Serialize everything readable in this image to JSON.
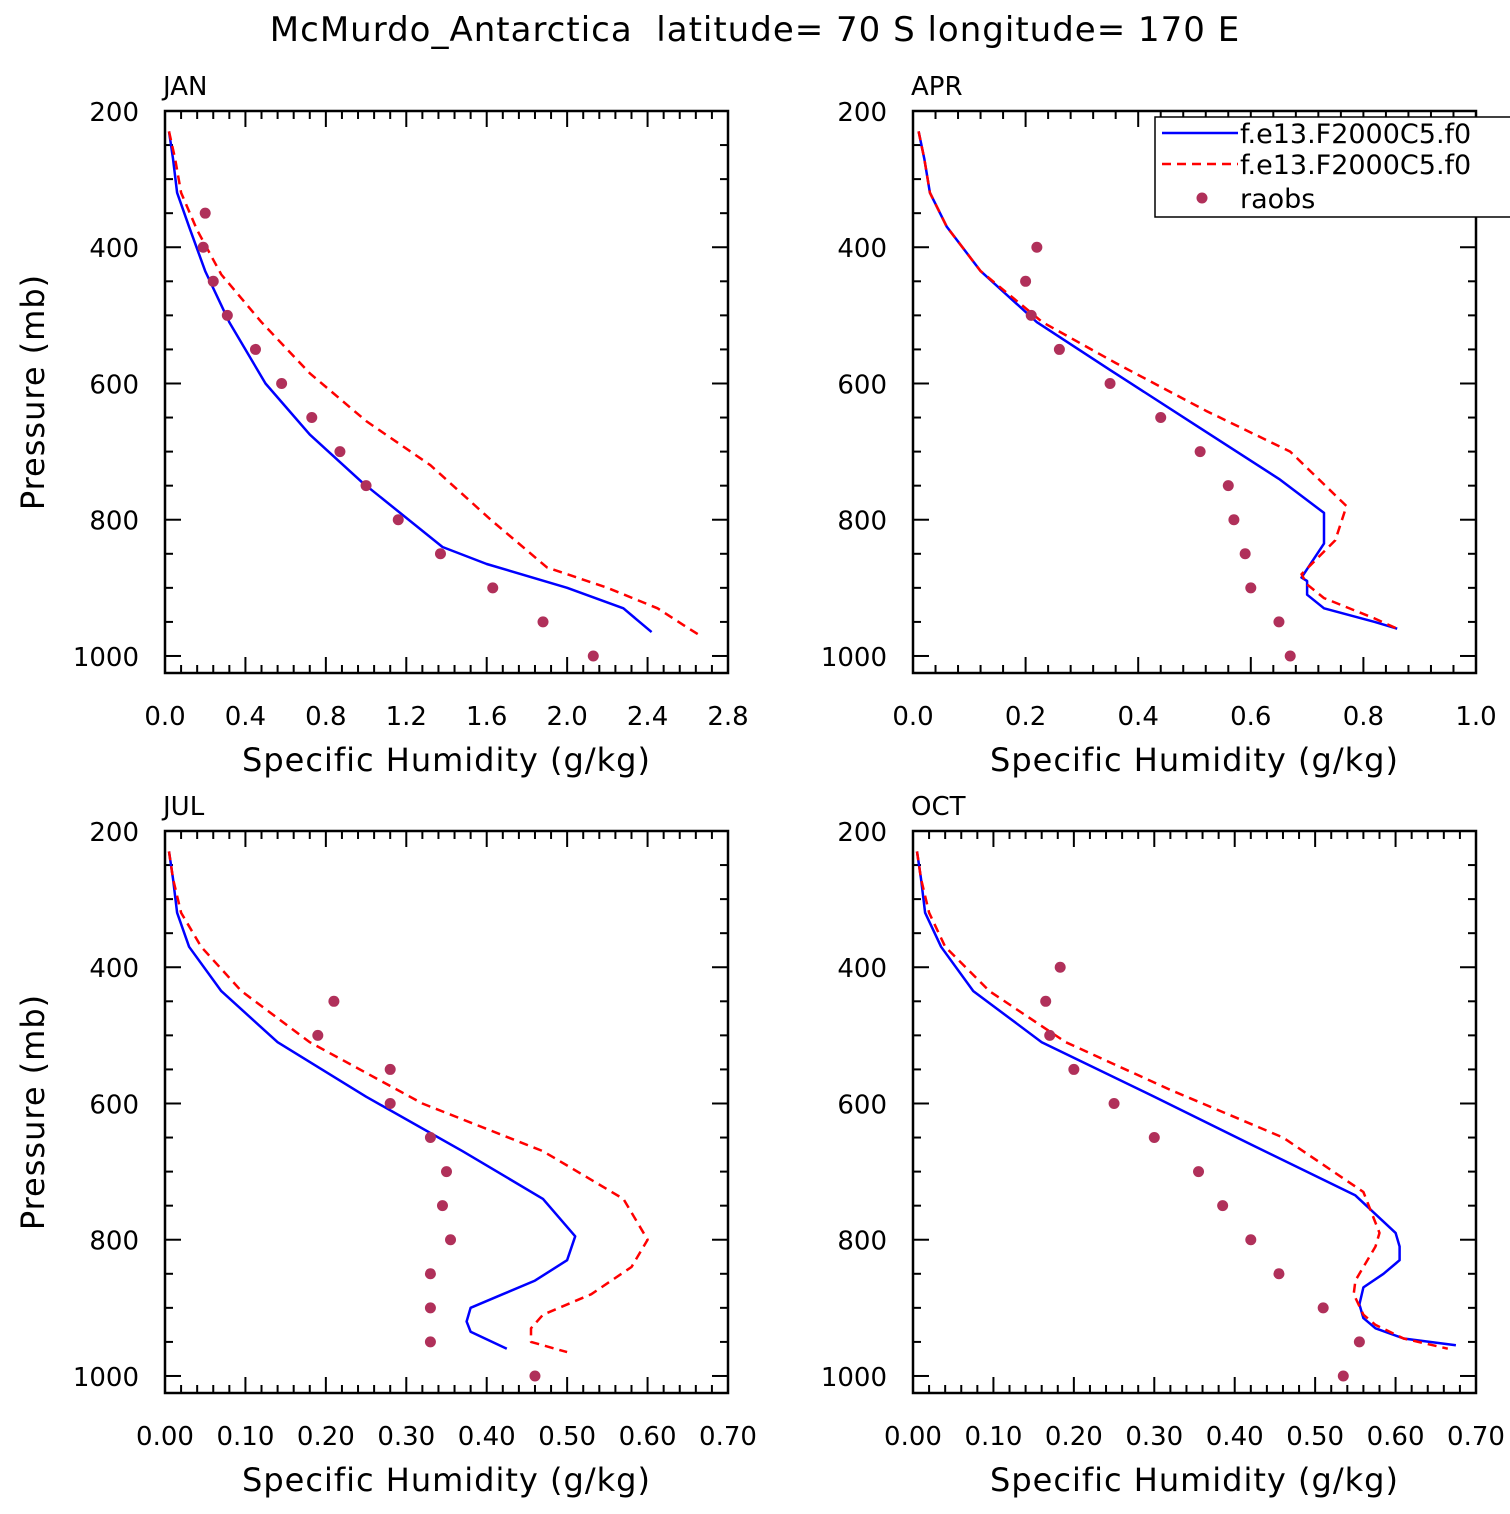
{
  "title": "McMurdo_Antarctica  latitude= 70 S longitude= 170 E",
  "legend": {
    "entries": [
      {
        "name": "f.e13.F2000C5.f0",
        "color": "#0000ff",
        "style": "solid"
      },
      {
        "name": "f.e13.F2000C5.f0",
        "color": "#ff0000",
        "style": "dashed"
      },
      {
        "name": "raobs",
        "color": "#b0305a",
        "style": "marker"
      }
    ]
  },
  "chart_data": [
    {
      "type": "line",
      "panel_label": "JAN",
      "xlabel": "Specific Humidity (g/kg)",
      "ylabel": "Pressure (mb)",
      "xlim": [
        0,
        2.8
      ],
      "ylim": [
        1025,
        200
      ],
      "y_axis_inverted": true,
      "xticks": [
        "0.0",
        "0.4",
        "0.8",
        "1.2",
        "1.6",
        "2.0",
        "2.4",
        "2.8"
      ],
      "yticks": [
        "200",
        "400",
        "600",
        "800",
        "1000"
      ],
      "series": [
        {
          "style": "solid",
          "color": "#0000ff",
          "points": [
            [
              0.02,
              230
            ],
            [
              0.04,
              270
            ],
            [
              0.06,
              320
            ],
            [
              0.12,
              370
            ],
            [
              0.2,
              435
            ],
            [
              0.32,
              510
            ],
            [
              0.5,
              600
            ],
            [
              0.72,
              675
            ],
            [
              0.98,
              745
            ],
            [
              1.38,
              840
            ],
            [
              1.6,
              865
            ],
            [
              2.0,
              900
            ],
            [
              2.28,
              930
            ],
            [
              2.42,
              965
            ]
          ]
        },
        {
          "style": "dashed",
          "color": "#ff0000",
          "points": [
            [
              0.02,
              230
            ],
            [
              0.05,
              270
            ],
            [
              0.08,
              320
            ],
            [
              0.16,
              375
            ],
            [
              0.28,
              440
            ],
            [
              0.48,
              510
            ],
            [
              0.72,
              585
            ],
            [
              1.0,
              655
            ],
            [
              1.32,
              720
            ],
            [
              1.62,
              800
            ],
            [
              1.9,
              870
            ],
            [
              2.2,
              900
            ],
            [
              2.45,
              930
            ],
            [
              2.58,
              955
            ],
            [
              2.66,
              970
            ]
          ]
        },
        {
          "style": "marker",
          "color": "#b0305a",
          "points": [
            [
              0.2,
              350
            ],
            [
              0.19,
              400
            ],
            [
              0.24,
              450
            ],
            [
              0.31,
              500
            ],
            [
              0.45,
              550
            ],
            [
              0.58,
              600
            ],
            [
              0.73,
              650
            ],
            [
              0.87,
              700
            ],
            [
              1.0,
              750
            ],
            [
              1.16,
              800
            ],
            [
              1.37,
              850
            ],
            [
              1.63,
              900
            ],
            [
              1.88,
              950
            ],
            [
              2.13,
              1000
            ]
          ]
        }
      ]
    },
    {
      "type": "line",
      "panel_label": "APR",
      "xlabel": "Specific Humidity (g/kg)",
      "ylabel": "",
      "xlim": [
        0,
        1.0
      ],
      "ylim": [
        1025,
        200
      ],
      "y_axis_inverted": true,
      "xticks": [
        "0.0",
        "0.2",
        "0.4",
        "0.6",
        "0.8",
        "1.0"
      ],
      "yticks": [
        "200",
        "400",
        "600",
        "800",
        "1000"
      ],
      "series": [
        {
          "style": "solid",
          "color": "#0000ff",
          "points": [
            [
              0.01,
              230
            ],
            [
              0.02,
              270
            ],
            [
              0.03,
              320
            ],
            [
              0.06,
              370
            ],
            [
              0.12,
              435
            ],
            [
              0.22,
              510
            ],
            [
              0.35,
              580
            ],
            [
              0.5,
              660
            ],
            [
              0.65,
              740
            ],
            [
              0.73,
              790
            ],
            [
              0.73,
              835
            ],
            [
              0.69,
              885
            ],
            [
              0.7,
              890
            ],
            [
              0.7,
              910
            ],
            [
              0.73,
              930
            ],
            [
              0.82,
              950
            ],
            [
              0.86,
              960
            ]
          ]
        },
        {
          "style": "dashed",
          "color": "#ff0000",
          "points": [
            [
              0.01,
              230
            ],
            [
              0.02,
              270
            ],
            [
              0.03,
              320
            ],
            [
              0.06,
              370
            ],
            [
              0.12,
              435
            ],
            [
              0.23,
              510
            ],
            [
              0.36,
              570
            ],
            [
              0.52,
              640
            ],
            [
              0.67,
              700
            ],
            [
              0.72,
              740
            ],
            [
              0.77,
              780
            ],
            [
              0.75,
              830
            ],
            [
              0.69,
              880
            ],
            [
              0.7,
              895
            ],
            [
              0.73,
              915
            ],
            [
              0.82,
              945
            ],
            [
              0.86,
              960
            ]
          ]
        },
        {
          "style": "marker",
          "color": "#b0305a",
          "points": [
            [
              0.22,
              400
            ],
            [
              0.2,
              450
            ],
            [
              0.21,
              500
            ],
            [
              0.26,
              550
            ],
            [
              0.35,
              600
            ],
            [
              0.44,
              650
            ],
            [
              0.51,
              700
            ],
            [
              0.56,
              750
            ],
            [
              0.57,
              800
            ],
            [
              0.59,
              850
            ],
            [
              0.6,
              900
            ],
            [
              0.65,
              950
            ],
            [
              0.67,
              1000
            ]
          ]
        }
      ]
    },
    {
      "type": "line",
      "panel_label": "JUL",
      "xlabel": "Specific Humidity (g/kg)",
      "ylabel": "Pressure (mb)",
      "xlim": [
        0,
        0.7
      ],
      "ylim": [
        1025,
        200
      ],
      "y_axis_inverted": true,
      "xticks": [
        "0.00",
        "0.10",
        "0.20",
        "0.30",
        "0.40",
        "0.50",
        "0.60",
        "0.70"
      ],
      "yticks": [
        "200",
        "400",
        "600",
        "800",
        "1000"
      ],
      "series": [
        {
          "style": "solid",
          "color": "#0000ff",
          "points": [
            [
              0.005,
              230
            ],
            [
              0.01,
              270
            ],
            [
              0.015,
              320
            ],
            [
              0.03,
              370
            ],
            [
              0.07,
              435
            ],
            [
              0.14,
              510
            ],
            [
              0.25,
              590
            ],
            [
              0.37,
              670
            ],
            [
              0.47,
              740
            ],
            [
              0.51,
              795
            ],
            [
              0.5,
              830
            ],
            [
              0.46,
              860
            ],
            [
              0.42,
              880
            ],
            [
              0.38,
              900
            ],
            [
              0.375,
              920
            ],
            [
              0.38,
              935
            ],
            [
              0.425,
              960
            ]
          ]
        },
        {
          "style": "dashed",
          "color": "#ff0000",
          "points": [
            [
              0.005,
              230
            ],
            [
              0.01,
              270
            ],
            [
              0.02,
              320
            ],
            [
              0.045,
              370
            ],
            [
              0.095,
              435
            ],
            [
              0.18,
              510
            ],
            [
              0.32,
              600
            ],
            [
              0.47,
              670
            ],
            [
              0.57,
              740
            ],
            [
              0.6,
              800
            ],
            [
              0.58,
              840
            ],
            [
              0.53,
              880
            ],
            [
              0.47,
              910
            ],
            [
              0.455,
              930
            ],
            [
              0.455,
              950
            ],
            [
              0.5,
              965
            ]
          ]
        },
        {
          "style": "marker",
          "color": "#b0305a",
          "points": [
            [
              0.21,
              450
            ],
            [
              0.19,
              500
            ],
            [
              0.28,
              550
            ],
            [
              0.28,
              600
            ],
            [
              0.33,
              650
            ],
            [
              0.35,
              700
            ],
            [
              0.345,
              750
            ],
            [
              0.355,
              800
            ],
            [
              0.33,
              850
            ],
            [
              0.33,
              900
            ],
            [
              0.33,
              950
            ],
            [
              0.46,
              1000
            ]
          ]
        }
      ]
    },
    {
      "type": "line",
      "panel_label": "OCT",
      "xlabel": "Specific Humidity (g/kg)",
      "ylabel": "",
      "xlim": [
        0,
        0.7
      ],
      "ylim": [
        1025,
        200
      ],
      "y_axis_inverted": true,
      "xticks": [
        "0.00",
        "0.10",
        "0.20",
        "0.30",
        "0.40",
        "0.50",
        "0.60",
        "0.70"
      ],
      "yticks": [
        "200",
        "400",
        "600",
        "800",
        "1000"
      ],
      "series": [
        {
          "style": "solid",
          "color": "#0000ff",
          "points": [
            [
              0.005,
              230
            ],
            [
              0.01,
              270
            ],
            [
              0.015,
              320
            ],
            [
              0.035,
              370
            ],
            [
              0.075,
              435
            ],
            [
              0.16,
              510
            ],
            [
              0.3,
              590
            ],
            [
              0.42,
              660
            ],
            [
              0.55,
              735
            ],
            [
              0.6,
              790
            ],
            [
              0.605,
              810
            ],
            [
              0.605,
              830
            ],
            [
              0.585,
              850
            ],
            [
              0.56,
              870
            ],
            [
              0.555,
              895
            ],
            [
              0.56,
              915
            ],
            [
              0.575,
              930
            ],
            [
              0.61,
              945
            ],
            [
              0.675,
              955
            ]
          ]
        },
        {
          "style": "dashed",
          "color": "#ff0000",
          "points": [
            [
              0.005,
              230
            ],
            [
              0.01,
              270
            ],
            [
              0.02,
              320
            ],
            [
              0.04,
              370
            ],
            [
              0.095,
              435
            ],
            [
              0.19,
              510
            ],
            [
              0.32,
              580
            ],
            [
              0.46,
              650
            ],
            [
              0.56,
              730
            ],
            [
              0.58,
              790
            ],
            [
              0.575,
              810
            ],
            [
              0.56,
              840
            ],
            [
              0.55,
              860
            ],
            [
              0.548,
              880
            ],
            [
              0.56,
              910
            ],
            [
              0.575,
              925
            ],
            [
              0.61,
              945
            ],
            [
              0.665,
              960
            ]
          ]
        },
        {
          "style": "marker",
          "color": "#b0305a",
          "points": [
            [
              0.183,
              400
            ],
            [
              0.165,
              450
            ],
            [
              0.17,
              500
            ],
            [
              0.2,
              550
            ],
            [
              0.25,
              600
            ],
            [
              0.3,
              650
            ],
            [
              0.355,
              700
            ],
            [
              0.385,
              750
            ],
            [
              0.42,
              800
            ],
            [
              0.455,
              850
            ],
            [
              0.51,
              900
            ],
            [
              0.555,
              950
            ],
            [
              0.535,
              1000
            ]
          ]
        }
      ]
    }
  ]
}
